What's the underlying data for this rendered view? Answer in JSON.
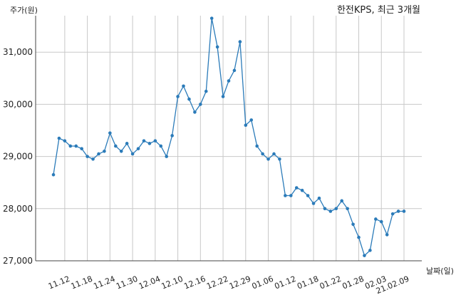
{
  "chart_data": {
    "type": "line",
    "title": "한전KPS, 최근 3개월",
    "ylabel": "주가(원)",
    "xlabel": "날짜(일)",
    "ylim": [
      27000,
      31700
    ],
    "yticks": [
      27000,
      28000,
      29000,
      30000,
      31000
    ],
    "ytick_labels": [
      "27,000",
      "28,000",
      "29,000",
      "30,000",
      "31,000"
    ],
    "xtick_labels": [
      "11.12",
      "11.18",
      "11.24",
      "11.30",
      "12.04",
      "12.10",
      "12.16",
      "12.22",
      "12.29",
      "01.06",
      "01.12",
      "01.18",
      "01.22",
      "01.28",
      "02.03",
      "21.02.09"
    ],
    "xtick_indices": [
      2,
      6,
      10,
      14,
      18,
      22,
      26,
      30,
      34,
      38,
      42,
      46,
      50,
      54,
      58,
      62
    ],
    "grid": true,
    "color": "#2b7bb9",
    "values": [
      28650,
      29350,
      29300,
      29200,
      29200,
      29150,
      29000,
      28950,
      29050,
      29100,
      29450,
      29200,
      29100,
      29250,
      29050,
      29150,
      29300,
      29250,
      29300,
      29200,
      29000,
      29400,
      30150,
      30350,
      30100,
      29850,
      30000,
      30250,
      31650,
      31100,
      30150,
      30450,
      30650,
      31200,
      29600,
      29700,
      29200,
      29050,
      28950,
      29050,
      28950,
      28250,
      28250,
      28400,
      28350,
      28250,
      28100,
      28200,
      28000,
      27950,
      28000,
      28150,
      28000,
      27700,
      27450,
      27100,
      27200,
      27800,
      27750,
      27500,
      27900,
      27950,
      27950
    ]
  }
}
